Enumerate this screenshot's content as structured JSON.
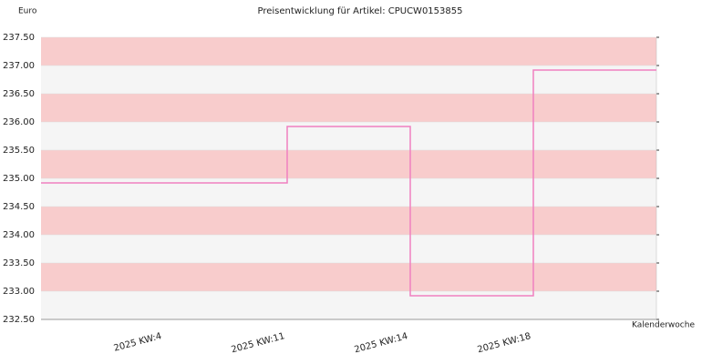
{
  "chart_data": {
    "type": "step",
    "title": "Preisentwicklung für Artikel: CPUCW0153855",
    "y_label": "Euro",
    "x_label": "Kalenderwoche",
    "categories": [
      null,
      "2025 KW:4",
      "2025 KW:11",
      "2025 KW:14",
      "2025 KW:18"
    ],
    "values": [
      234.92,
      234.92,
      235.92,
      232.92,
      236.92
    ],
    "color": "#f080c0",
    "band_colors": [
      "#f8cccc",
      "#f5f5f5"
    ],
    "ylim": [
      232.5,
      237.5
    ],
    "yticks": [
      {
        "value": 232.5,
        "label": "232.50"
      },
      {
        "value": 233,
        "label": "233.00"
      },
      {
        "value": 233.5,
        "label": "233.50"
      },
      {
        "value": 234,
        "label": "234.00"
      },
      {
        "value": 234.5,
        "label": "234.50"
      },
      {
        "value": 235,
        "label": "235.00"
      },
      {
        "value": 235.5,
        "label": "235.50"
      },
      {
        "value": 236,
        "label": "236.00"
      },
      {
        "value": 236.5,
        "label": "236.50"
      },
      {
        "value": 237,
        "label": "237.00"
      },
      {
        "value": 237.5,
        "label": "237.50"
      }
    ]
  }
}
